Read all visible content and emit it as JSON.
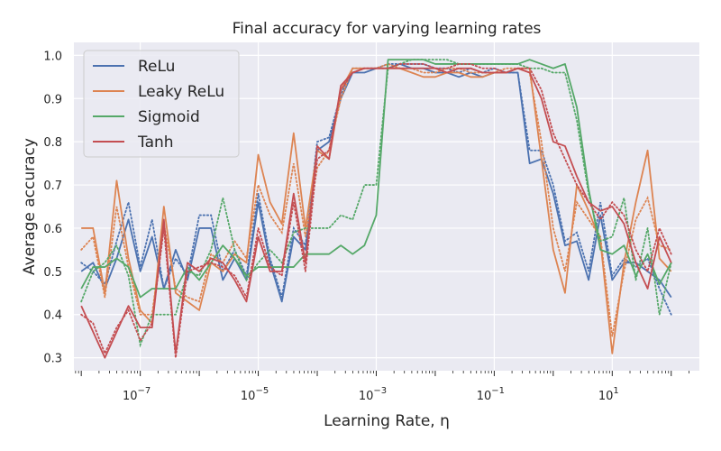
{
  "chart_data": {
    "type": "line",
    "title": "Final accuracy for varying learning rates",
    "xlabel": "Learning Rate, η",
    "ylabel": "Average accuracy",
    "xscale": "log",
    "xlim": [
      7.5e-09,
      300
    ],
    "ylim": [
      0.27,
      1.03
    ],
    "xticks": [
      {
        "value": 1e-07,
        "base": "10",
        "exp": "−7"
      },
      {
        "value": 1e-05,
        "base": "10",
        "exp": "−5"
      },
      {
        "value": 0.001,
        "base": "10",
        "exp": "−3"
      },
      {
        "value": 0.1,
        "base": "10",
        "exp": "−1"
      },
      {
        "value": 10,
        "base": "10",
        "exp": "1"
      }
    ],
    "yticks": [
      "0.3",
      "0.4",
      "0.5",
      "0.6",
      "0.7",
      "0.8",
      "0.9",
      "1.0"
    ],
    "grid": true,
    "legend_position": "top-left",
    "x_range": [
      1e-08,
      100
    ],
    "series": [
      {
        "name": "ReLu",
        "color": "#4c72b0",
        "values": [
          0.5,
          0.52,
          0.46,
          0.53,
          0.62,
          0.5,
          0.58,
          0.46,
          0.55,
          0.48,
          0.6,
          0.6,
          0.48,
          0.53,
          0.48,
          0.66,
          0.52,
          0.43,
          0.58,
          0.55,
          0.78,
          0.8,
          0.9,
          0.96,
          0.96,
          0.97,
          0.97,
          0.98,
          0.97,
          0.97,
          0.96,
          0.96,
          0.95,
          0.96,
          0.95,
          0.96,
          0.96,
          0.96,
          0.75,
          0.76,
          0.68,
          0.56,
          0.57,
          0.48,
          0.63,
          0.48,
          0.52,
          0.52,
          0.5,
          0.48,
          0.44
        ],
        "dotted": [
          0.52,
          0.5,
          0.47,
          0.57,
          0.66,
          0.51,
          0.62,
          0.46,
          0.53,
          0.49,
          0.63,
          0.63,
          0.5,
          0.55,
          0.49,
          0.68,
          0.53,
          0.44,
          0.6,
          0.56,
          0.8,
          0.81,
          0.91,
          0.97,
          0.97,
          0.97,
          0.98,
          0.98,
          0.98,
          0.98,
          0.97,
          0.97,
          0.96,
          0.97,
          0.96,
          0.97,
          0.96,
          0.96,
          0.78,
          0.78,
          0.7,
          0.57,
          0.59,
          0.5,
          0.66,
          0.49,
          0.53,
          0.51,
          0.53,
          0.46,
          0.4
        ]
      },
      {
        "name": "Leaky ReLu",
        "color": "#dd8452",
        "values": [
          0.6,
          0.6,
          0.45,
          0.71,
          0.53,
          0.41,
          0.38,
          0.65,
          0.45,
          0.43,
          0.41,
          0.52,
          0.5,
          0.54,
          0.52,
          0.77,
          0.66,
          0.61,
          0.82,
          0.6,
          0.78,
          0.76,
          0.92,
          0.97,
          0.97,
          0.97,
          0.97,
          0.97,
          0.96,
          0.95,
          0.95,
          0.96,
          0.96,
          0.95,
          0.95,
          0.96,
          0.96,
          0.97,
          0.97,
          0.76,
          0.55,
          0.45,
          0.7,
          0.64,
          0.57,
          0.31,
          0.52,
          0.66,
          0.78,
          0.53,
          0.5
        ],
        "dotted": [
          0.55,
          0.58,
          0.44,
          0.65,
          0.51,
          0.4,
          0.4,
          0.61,
          0.46,
          0.44,
          0.43,
          0.54,
          0.52,
          0.57,
          0.53,
          0.7,
          0.63,
          0.59,
          0.75,
          0.58,
          0.74,
          0.78,
          0.9,
          0.97,
          0.97,
          0.97,
          0.98,
          0.97,
          0.97,
          0.96,
          0.96,
          0.97,
          0.97,
          0.96,
          0.96,
          0.96,
          0.97,
          0.97,
          0.96,
          0.8,
          0.6,
          0.5,
          0.66,
          0.62,
          0.58,
          0.35,
          0.5,
          0.62,
          0.67,
          0.56,
          0.55
        ]
      },
      {
        "name": "Sigmoid",
        "color": "#55a868",
        "values": [
          0.46,
          0.51,
          0.51,
          0.53,
          0.51,
          0.44,
          0.46,
          0.46,
          0.46,
          0.51,
          0.48,
          0.52,
          0.56,
          0.53,
          0.49,
          0.51,
          0.51,
          0.51,
          0.51,
          0.54,
          0.54,
          0.54,
          0.56,
          0.54,
          0.56,
          0.63,
          0.99,
          0.99,
          0.99,
          0.99,
          0.98,
          0.98,
          0.98,
          0.98,
          0.98,
          0.98,
          0.98,
          0.98,
          0.99,
          0.98,
          0.97,
          0.98,
          0.88,
          0.69,
          0.55,
          0.54,
          0.56,
          0.49,
          0.54,
          0.47,
          0.52
        ],
        "dotted": [
          0.43,
          0.5,
          0.52,
          0.56,
          0.49,
          0.33,
          0.4,
          0.4,
          0.4,
          0.5,
          0.49,
          0.55,
          0.67,
          0.55,
          0.48,
          0.52,
          0.55,
          0.52,
          0.59,
          0.6,
          0.6,
          0.6,
          0.63,
          0.62,
          0.7,
          0.7,
          0.97,
          0.98,
          0.99,
          0.99,
          0.99,
          0.99,
          0.98,
          0.98,
          0.98,
          0.98,
          0.98,
          0.98,
          0.97,
          0.97,
          0.96,
          0.96,
          0.85,
          0.68,
          0.57,
          0.58,
          0.67,
          0.48,
          0.6,
          0.4,
          0.52
        ]
      },
      {
        "name": "Tanh",
        "color": "#c44e52",
        "values": [
          0.42,
          0.36,
          0.3,
          0.36,
          0.42,
          0.37,
          0.37,
          0.62,
          0.31,
          0.52,
          0.5,
          0.53,
          0.52,
          0.48,
          0.43,
          0.58,
          0.5,
          0.5,
          0.68,
          0.52,
          0.79,
          0.76,
          0.93,
          0.96,
          0.97,
          0.97,
          0.97,
          0.97,
          0.97,
          0.97,
          0.97,
          0.96,
          0.97,
          0.97,
          0.96,
          0.96,
          0.96,
          0.97,
          0.96,
          0.9,
          0.8,
          0.79,
          0.72,
          0.66,
          0.64,
          0.65,
          0.61,
          0.52,
          0.46,
          0.58,
          0.52
        ],
        "dotted": [
          0.4,
          0.38,
          0.31,
          0.37,
          0.41,
          0.34,
          0.38,
          0.6,
          0.3,
          0.5,
          0.51,
          0.52,
          0.51,
          0.49,
          0.44,
          0.6,
          0.51,
          0.49,
          0.66,
          0.5,
          0.76,
          0.78,
          0.92,
          0.96,
          0.97,
          0.97,
          0.97,
          0.98,
          0.98,
          0.98,
          0.97,
          0.97,
          0.98,
          0.98,
          0.97,
          0.97,
          0.96,
          0.97,
          0.97,
          0.92,
          0.82,
          0.76,
          0.7,
          0.66,
          0.62,
          0.66,
          0.63,
          0.55,
          0.5,
          0.6,
          0.54
        ]
      }
    ]
  }
}
